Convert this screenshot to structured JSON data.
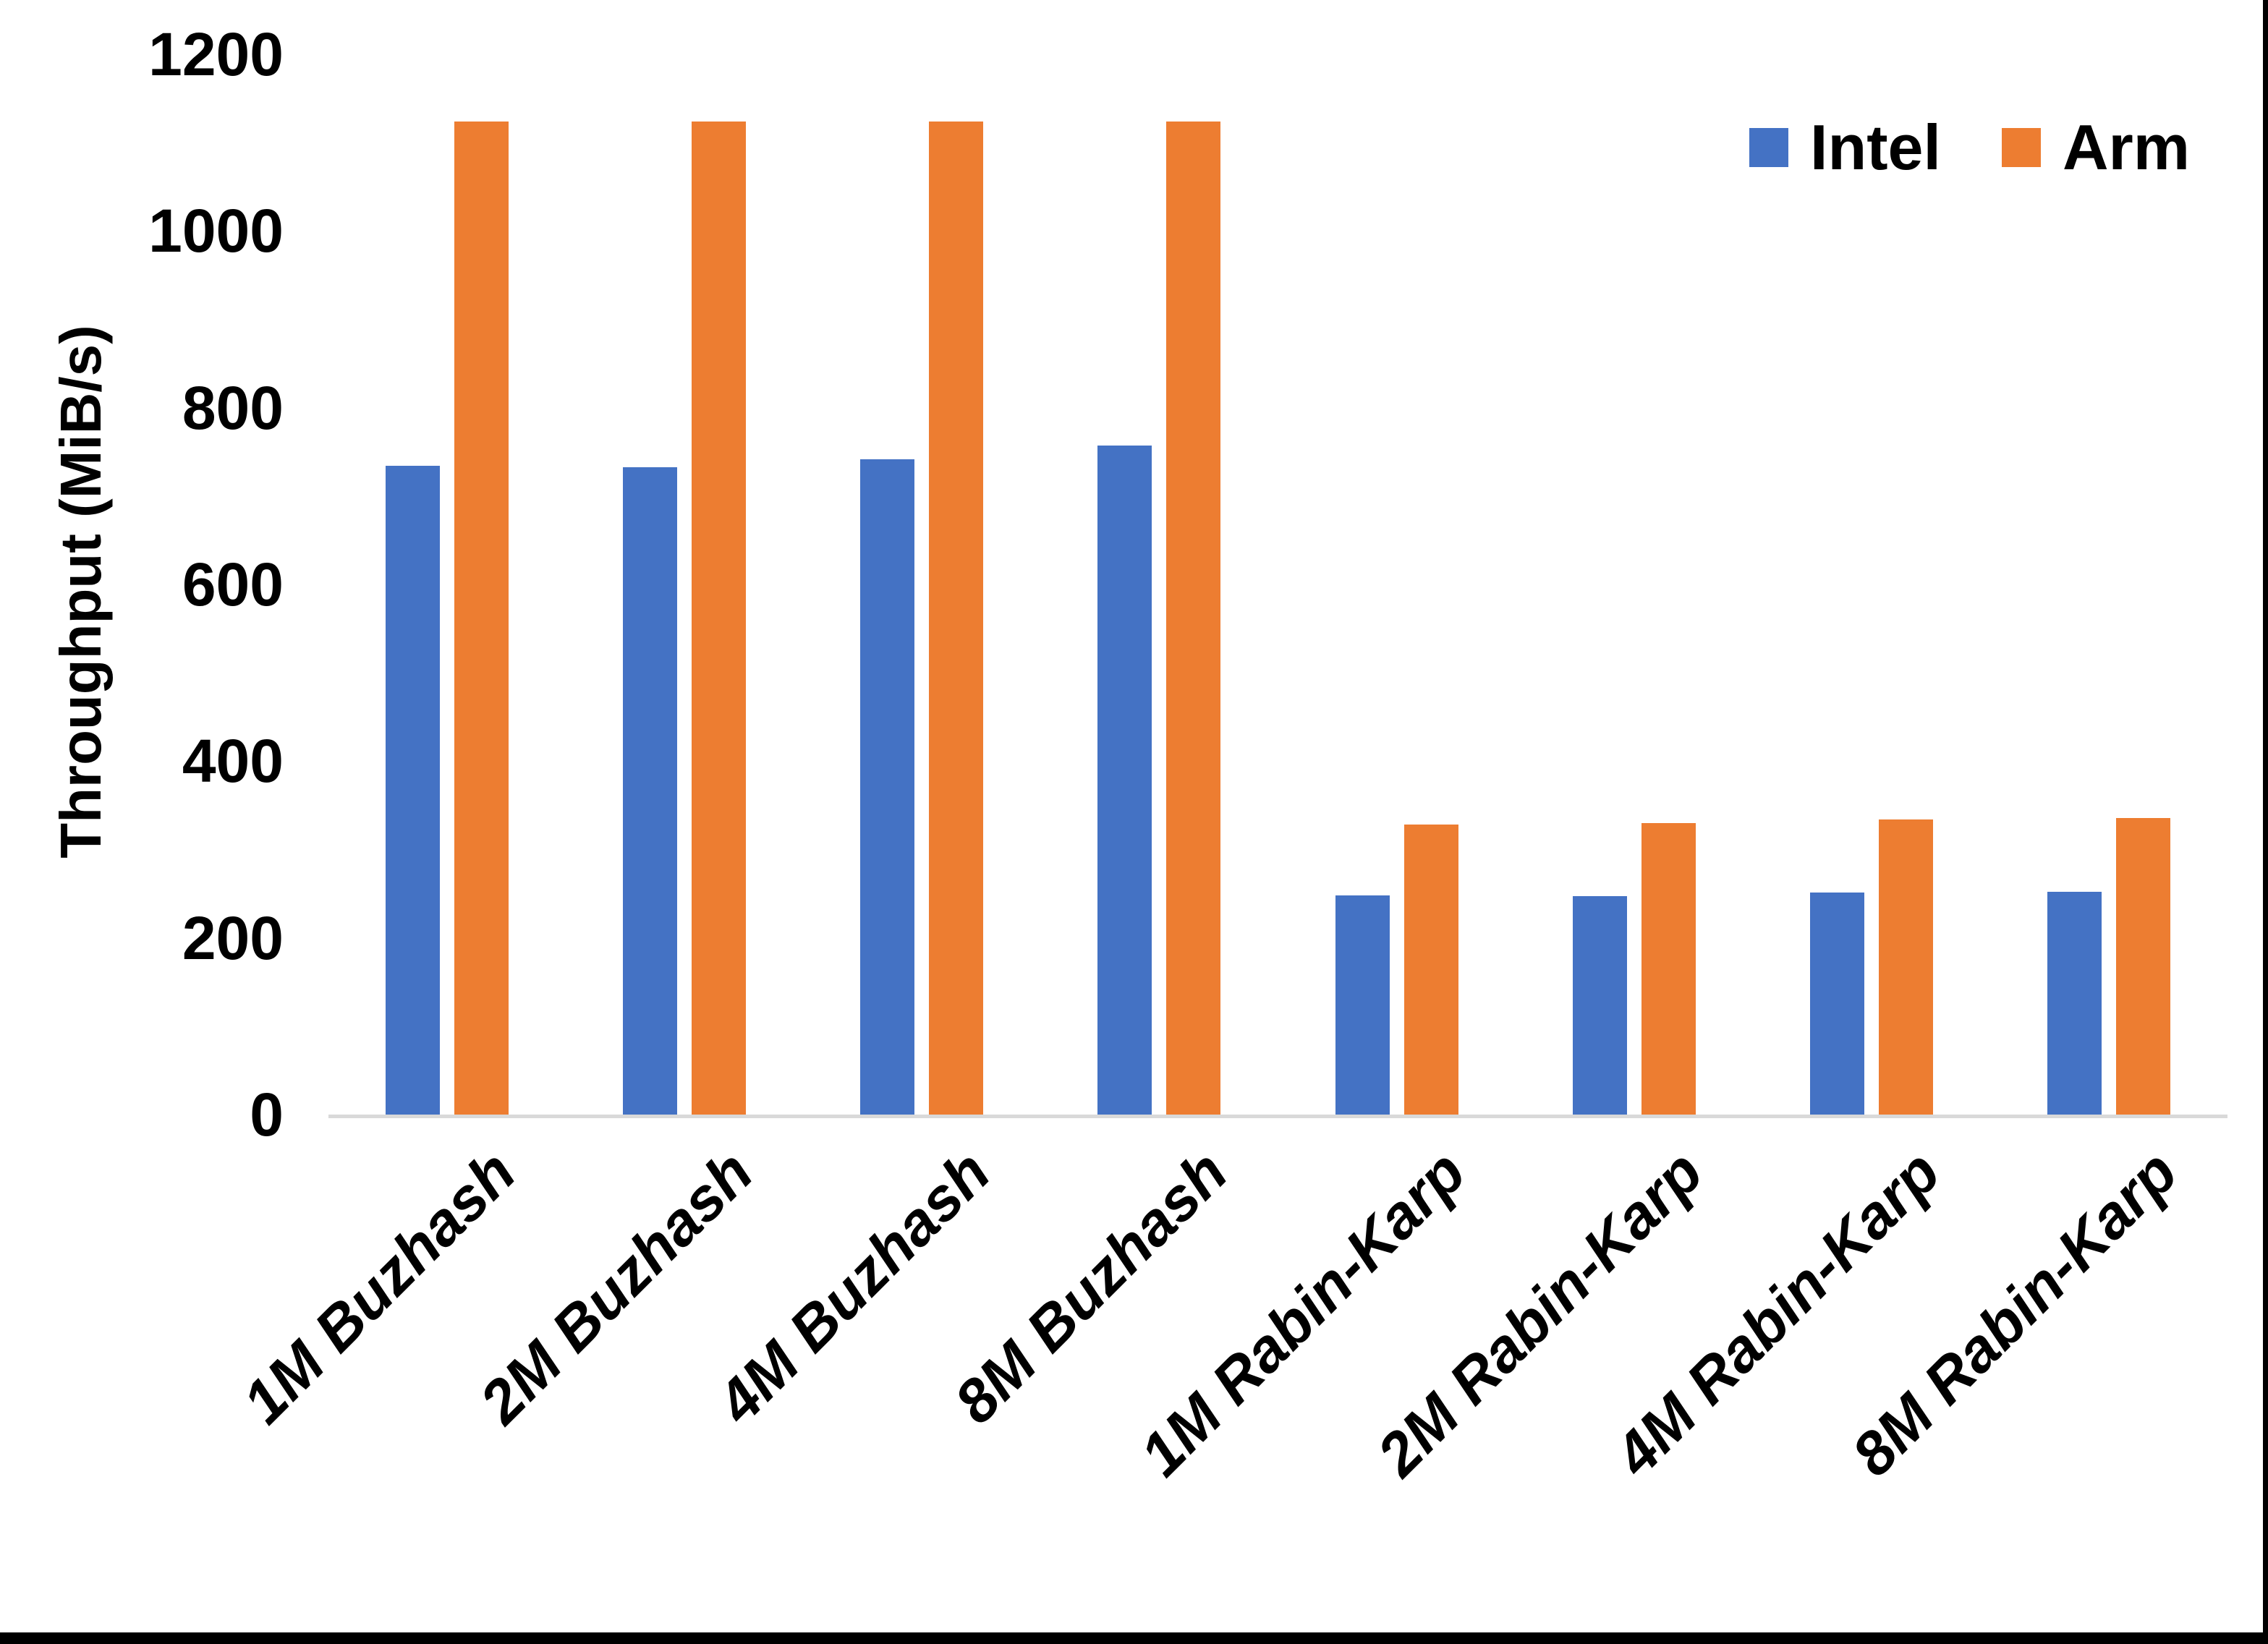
{
  "chart_data": {
    "type": "bar",
    "title": "",
    "xlabel": "",
    "ylabel": "Throughput (MiB/s)",
    "ylim": [
      0,
      1200
    ],
    "yticks": [
      0,
      200,
      400,
      600,
      800,
      1000,
      1200
    ],
    "grid": false,
    "legend_position": "top-right",
    "categories": [
      "1M Buzhash",
      "2M Buzhash",
      "4M Buzhash",
      "8M Buzhash",
      "1M Rabin-Karp",
      "2M Rabin-Karp",
      "4M Rabin-Karp",
      "8M Rabin-Karp"
    ],
    "series": [
      {
        "name": "Intel",
        "color": "#4472C4",
        "values": [
          734,
          733,
          742,
          757,
          248,
          247,
          251,
          252
        ]
      },
      {
        "name": "Arm",
        "color": "#ED7D31",
        "values": [
          1124,
          1124,
          1124,
          1124,
          328,
          330,
          334,
          336
        ]
      }
    ],
    "colors": {
      "intel_blue": "#4472C4",
      "arm_orange": "#ED7D31",
      "axis_line_gray": "#D9D9D9",
      "text_black": "#000000"
    }
  }
}
